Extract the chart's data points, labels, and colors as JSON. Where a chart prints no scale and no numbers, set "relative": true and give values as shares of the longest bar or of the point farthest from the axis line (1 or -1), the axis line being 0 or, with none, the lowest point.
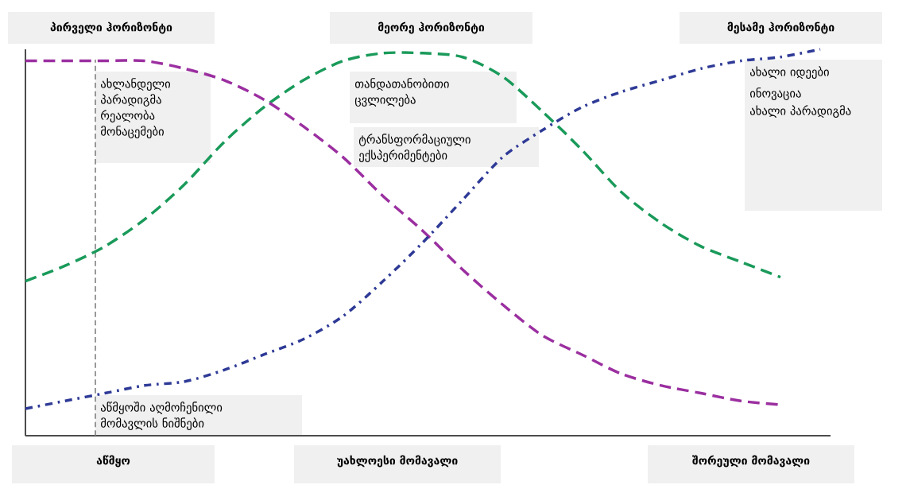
{
  "chart_data": {
    "type": "line",
    "relative": true,
    "categories": [
      null,
      null,
      null,
      null,
      null,
      null,
      null,
      null,
      null,
      null,
      null,
      null,
      null,
      null,
      null,
      null,
      null,
      null,
      null,
      null,
      null
    ],
    "series": [
      {
        "color": "#1a9a5a",
        "line_style": "dashed",
        "values": [
          0.4,
          0.44,
          0.49,
          0.56,
          0.65,
          0.76,
          0.85,
          0.92,
          0.97,
          0.99,
          0.99,
          0.98,
          0.93,
          0.84,
          0.74,
          0.63,
          0.55,
          0.49,
          0.45,
          0.41,
          null
        ]
      },
      {
        "color": "#9b2fa0",
        "line_style": "dashed",
        "values": [
          0.97,
          0.97,
          0.97,
          0.97,
          0.95,
          0.92,
          0.87,
          0.8,
          0.72,
          0.62,
          0.53,
          0.43,
          0.34,
          0.26,
          0.21,
          0.16,
          0.13,
          0.11,
          0.09,
          0.08,
          null
        ]
      },
      {
        "color": "#2e3a96",
        "line_style": "dotted",
        "values": [
          0.07,
          0.09,
          0.11,
          0.13,
          0.14,
          0.17,
          0.21,
          0.25,
          0.31,
          0.4,
          0.5,
          0.61,
          0.72,
          0.79,
          0.85,
          0.89,
          0.92,
          0.95,
          0.97,
          0.98,
          1.0
        ]
      }
    ],
    "annotations": [
      "პირველი ჰორიზონტი",
      "მეორე ჰორიზონტი",
      "მესამე ჰორიზონტი",
      "ახლანდელი პარადიგმა რეალობა მონაცემები",
      "თანდათანობითი ცვლილება",
      "ტრანსფორმაციული ექსპერიმენტები",
      "ახალი იდეები",
      "ინოვაცია",
      "ახალი პარადიგმა",
      "აწმყოში აღმოჩენილი მომავლის ნიშნები",
      "აწმყო",
      "უახლოესი მომავალი",
      "შორეული მომავალი"
    ]
  }
}
